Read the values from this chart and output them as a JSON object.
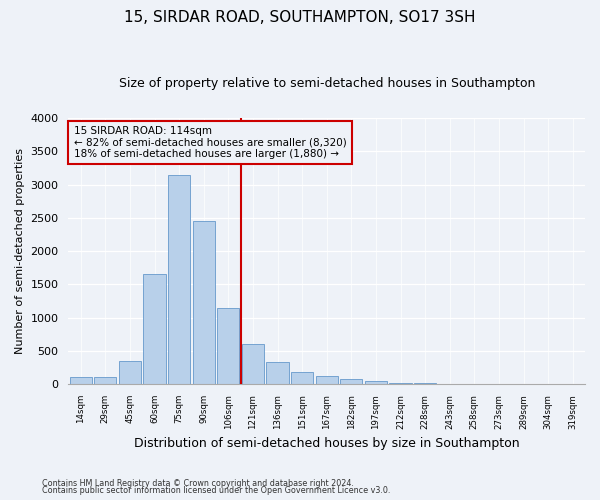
{
  "title": "15, SIRDAR ROAD, SOUTHAMPTON, SO17 3SH",
  "subtitle": "Size of property relative to semi-detached houses in Southampton",
  "xlabel": "Distribution of semi-detached houses by size in Southampton",
  "ylabel": "Number of semi-detached properties",
  "annotation_text": "15 SIRDAR ROAD: 114sqm\n← 82% of semi-detached houses are smaller (8,320)\n18% of semi-detached houses are larger (1,880) →",
  "bar_labels": [
    "14sqm",
    "29sqm",
    "45sqm",
    "60sqm",
    "75sqm",
    "90sqm",
    "106sqm",
    "121sqm",
    "136sqm",
    "151sqm",
    "167sqm",
    "182sqm",
    "197sqm",
    "212sqm",
    "228sqm",
    "243sqm",
    "258sqm",
    "273sqm",
    "289sqm",
    "304sqm",
    "319sqm"
  ],
  "bar_values": [
    100,
    100,
    350,
    1650,
    3150,
    2450,
    1150,
    600,
    330,
    175,
    120,
    70,
    45,
    20,
    10,
    5,
    3,
    2,
    1,
    0,
    0
  ],
  "bar_color": "#b8d0ea",
  "bar_edge_color": "#6699cc",
  "vline_color": "#cc0000",
  "annotation_box_color": "#cc0000",
  "background_color": "#eef2f8",
  "ylim": [
    0,
    4000
  ],
  "yticks": [
    0,
    500,
    1000,
    1500,
    2000,
    2500,
    3000,
    3500,
    4000
  ],
  "footer1": "Contains HM Land Registry data © Crown copyright and database right 2024.",
  "footer2": "Contains public sector information licensed under the Open Government Licence v3.0.",
  "title_fontsize": 11,
  "subtitle_fontsize": 9,
  "xlabel_fontsize": 9,
  "ylabel_fontsize": 8
}
